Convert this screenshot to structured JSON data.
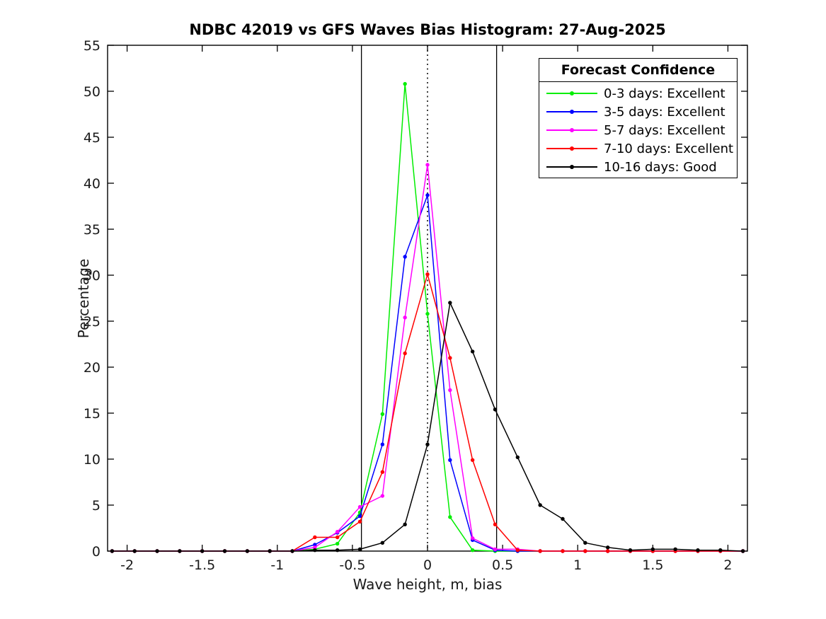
{
  "figure": {
    "title": "NDBC 42019 vs GFS Waves Bias Histogram: 27-Aug-2025",
    "xlabel": "Wave height, m, bias",
    "ylabel": "Percentage",
    "background_color": "#ffffff",
    "axis_color": "#000000",
    "tick_label_color": "#1a1a1a"
  },
  "legend": {
    "title": "Forecast Confidence",
    "position": "top-right",
    "entries": [
      {
        "label": "0-3 days: Excellent",
        "color": "#00ee00",
        "marker": "dot"
      },
      {
        "label": "3-5 days: Excellent",
        "color": "#0000ff",
        "marker": "dot"
      },
      {
        "label": "5-7 days: Excellent",
        "color": "#ff00ff",
        "marker": "dot"
      },
      {
        "label": "7-10 days: Excellent",
        "color": "#ff0000",
        "marker": "dot"
      },
      {
        "label": "10-16 days: Good",
        "color": "#000000",
        "marker": "dot"
      }
    ]
  },
  "chart_data": {
    "type": "line",
    "title": "NDBC 42019 vs GFS Waves Bias Histogram: 27-Aug-2025",
    "xlabel": "Wave height, m, bias",
    "ylabel": "Percentage",
    "xlim": [
      -2.13,
      2.13
    ],
    "ylim": [
      0,
      55
    ],
    "grid": false,
    "box": true,
    "xticks": [
      -2,
      -1.5,
      -1,
      -0.5,
      0,
      0.5,
      1,
      1.5,
      2
    ],
    "xtick_labels": [
      "-2",
      "-1.5",
      "-1",
      "-0.5",
      "0",
      "0.5",
      "1",
      "1.5",
      "2"
    ],
    "yticks": [
      0,
      5,
      10,
      15,
      20,
      25,
      30,
      35,
      40,
      45,
      50,
      55
    ],
    "ytick_labels": [
      "0",
      "5",
      "10",
      "15",
      "20",
      "25",
      "30",
      "35",
      "40",
      "45",
      "50",
      "55"
    ],
    "x": [
      -2.1,
      -1.95,
      -1.8,
      -1.65,
      -1.5,
      -1.35,
      -1.2,
      -1.05,
      -0.9,
      -0.75,
      -0.6,
      -0.45,
      -0.3,
      -0.15,
      0,
      0.15,
      0.3,
      0.45,
      0.6,
      0.75,
      0.9,
      1.05,
      1.2,
      1.35,
      1.5,
      1.65,
      1.8,
      1.95,
      2.1
    ],
    "series": [
      {
        "name": "0-3 days: Excellent",
        "color": "#00ee00",
        "values": [
          0,
          0,
          0,
          0,
          0,
          0,
          0,
          0,
          0,
          0.2,
          0.8,
          4.2,
          14.9,
          50.8,
          25.8,
          3.7,
          0.1,
          0,
          0,
          0,
          0,
          0,
          0,
          0,
          0,
          0,
          0,
          0,
          0
        ]
      },
      {
        "name": "3-5 days: Excellent",
        "color": "#0000ff",
        "values": [
          0,
          0,
          0,
          0,
          0,
          0,
          0,
          0,
          0,
          0.7,
          2.0,
          3.8,
          11.6,
          32.0,
          38.7,
          9.9,
          1.2,
          0.1,
          0,
          0,
          0,
          0,
          0,
          0,
          0,
          0,
          0,
          0,
          0
        ]
      },
      {
        "name": "5-7 days: Excellent",
        "color": "#ff00ff",
        "values": [
          0,
          0,
          0,
          0,
          0,
          0,
          0,
          0,
          0,
          0.4,
          2.1,
          4.8,
          6.0,
          25.4,
          42.0,
          17.5,
          1.4,
          0.2,
          0.2,
          0,
          0,
          0,
          0,
          0,
          0,
          0,
          0,
          0,
          0
        ]
      },
      {
        "name": "7-10 days: Excellent",
        "color": "#ff0000",
        "values": [
          0,
          0,
          0,
          0,
          0,
          0,
          0,
          0,
          0,
          1.5,
          1.5,
          3.2,
          8.6,
          21.5,
          30.1,
          21.0,
          9.9,
          2.9,
          0.1,
          0,
          0,
          0,
          0,
          0,
          0,
          0,
          0,
          0,
          0
        ]
      },
      {
        "name": "10-16 days: Good",
        "color": "#000000",
        "values": [
          0,
          0,
          0,
          0,
          0,
          0,
          0,
          0,
          0,
          0.1,
          0.1,
          0.2,
          0.9,
          2.9,
          11.6,
          27.0,
          21.7,
          15.4,
          10.2,
          5.0,
          3.5,
          0.9,
          0.4,
          0.1,
          0.2,
          0.2,
          0.1,
          0.1,
          0
        ]
      }
    ],
    "annotations": {
      "solid_vlines": [
        -0.44,
        0.46
      ],
      "dotted_vline": 0
    }
  }
}
